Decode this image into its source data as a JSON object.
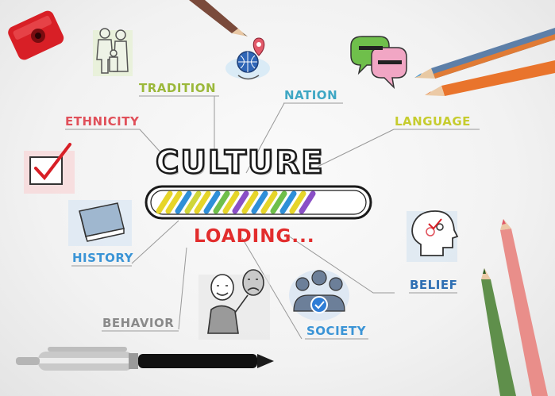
{
  "center": {
    "title": "CULTURE",
    "status": "LOADING..."
  },
  "labels": {
    "tradition": "TRADITION",
    "nation": "NATION",
    "ethnicity": "ETHNICITY",
    "language": "LANGUAGE",
    "history": "HISTORY",
    "belief": "BELIEF",
    "behavior": "BEHAVIOR",
    "society": "SOCIETY"
  },
  "colors": {
    "tradition": "#9bb83a",
    "nation": "#3fa7c4",
    "ethnicity": "#e0505a",
    "language": "#c6cc2e",
    "history": "#3a94d6",
    "belief": "#2f6fb3",
    "behavior": "#8a8a8a",
    "society": "#3a94d6",
    "loading": "#e22d2d",
    "title_outline": "#1a1a1a"
  },
  "icons": [
    "sharpener-icon",
    "family-icon",
    "globe-pin-icon",
    "chat-bubbles-icon",
    "checkbox-icon",
    "book-icon",
    "head-gears-icon",
    "people-group-icon",
    "masks-person-icon",
    "pen-icon",
    "pencil-icon"
  ]
}
